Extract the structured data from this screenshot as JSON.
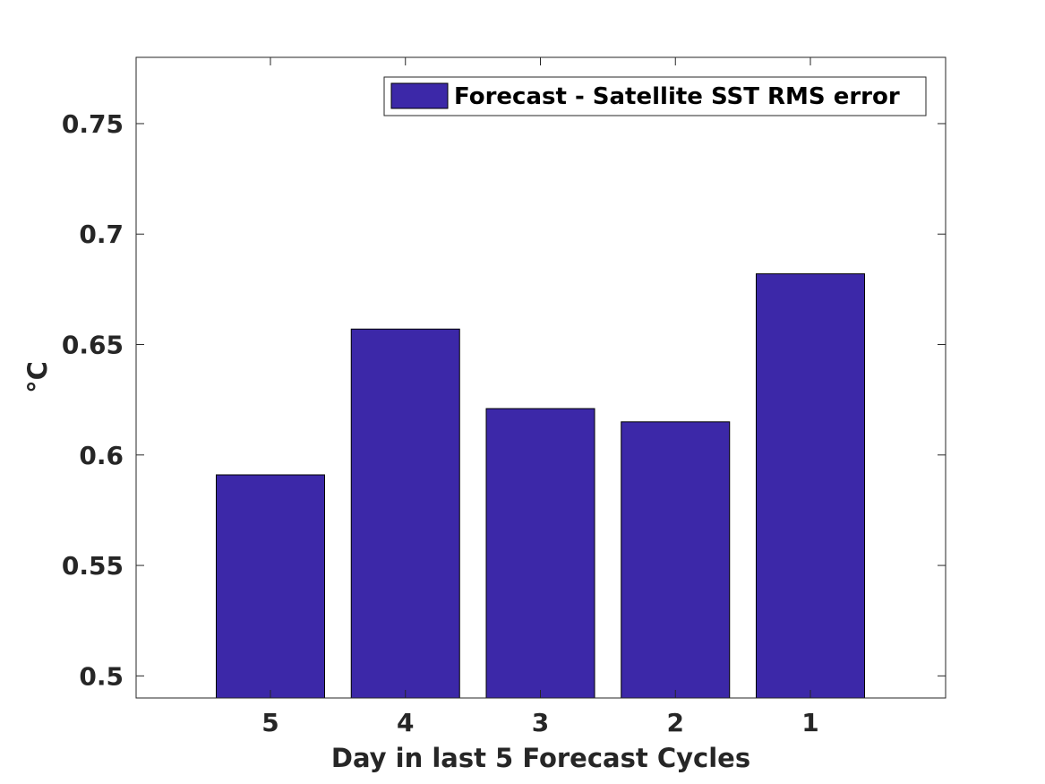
{
  "chart_data": {
    "type": "bar",
    "categories": [
      "5",
      "4",
      "3",
      "2",
      "1"
    ],
    "series": [
      {
        "name": "Forecast - Satellite SST RMS error",
        "values": [
          0.591,
          0.657,
          0.621,
          0.615,
          0.682
        ]
      }
    ],
    "title": "",
    "xlabel": "Day in last 5 Forecast Cycles",
    "ylabel": "°C",
    "ylim": [
      0.49,
      0.78
    ],
    "yticks": [
      0.5,
      0.55,
      0.6,
      0.65,
      0.7,
      0.75
    ],
    "ytick_labels": [
      "0.5",
      "0.55",
      "0.6",
      "0.65",
      "0.7",
      "0.75"
    ],
    "grid": false,
    "legend": "top-right",
    "colors": {
      "bar": "#3c28a8",
      "edge": "#000000",
      "axis": "#262626"
    }
  }
}
